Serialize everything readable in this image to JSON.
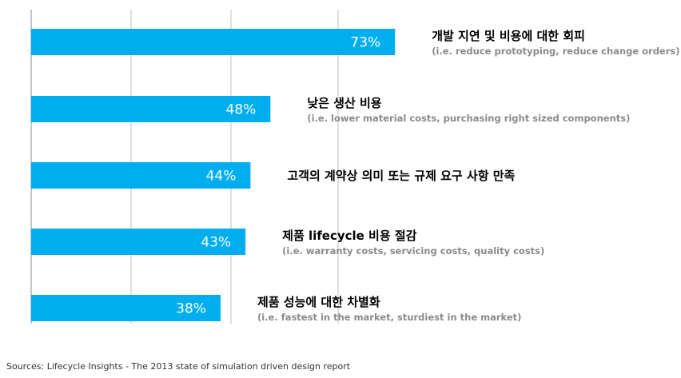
{
  "chart_data": {
    "type": "bar",
    "orientation": "horizontal",
    "xlim": [
      0,
      100
    ],
    "grid": true,
    "bar_color": "#00aeef",
    "value_label_color": "#ffffff",
    "categories": [
      {
        "label": "개발 지연 및 비용에 대한 회피",
        "sublabel": "(i.e. reduce prototyping, reduce change orders)",
        "value": 73,
        "value_label": "73%"
      },
      {
        "label": "낮은 생산 비용",
        "sublabel": "(i.e. lower material costs, purchasing right sized components)",
        "value": 48,
        "value_label": "48%"
      },
      {
        "label": "고객의 계약상 의미 또는 규제 요구 사항 만족",
        "sublabel": "",
        "value": 44,
        "value_label": "44%"
      },
      {
        "label": "제품 lifecycle 비용 절감",
        "sublabel": "(i.e. warranty costs, servicing costs, quality costs)",
        "value": 43,
        "value_label": "43%"
      },
      {
        "label": "제품 성능에 대한 차별화",
        "sublabel": "(i.e. fastest in the market, sturdiest in the market)",
        "value": 38,
        "value_label": "38%"
      }
    ]
  },
  "source": "Sources: Lifecycle Insights - The 2013 state of simulation driven design report"
}
